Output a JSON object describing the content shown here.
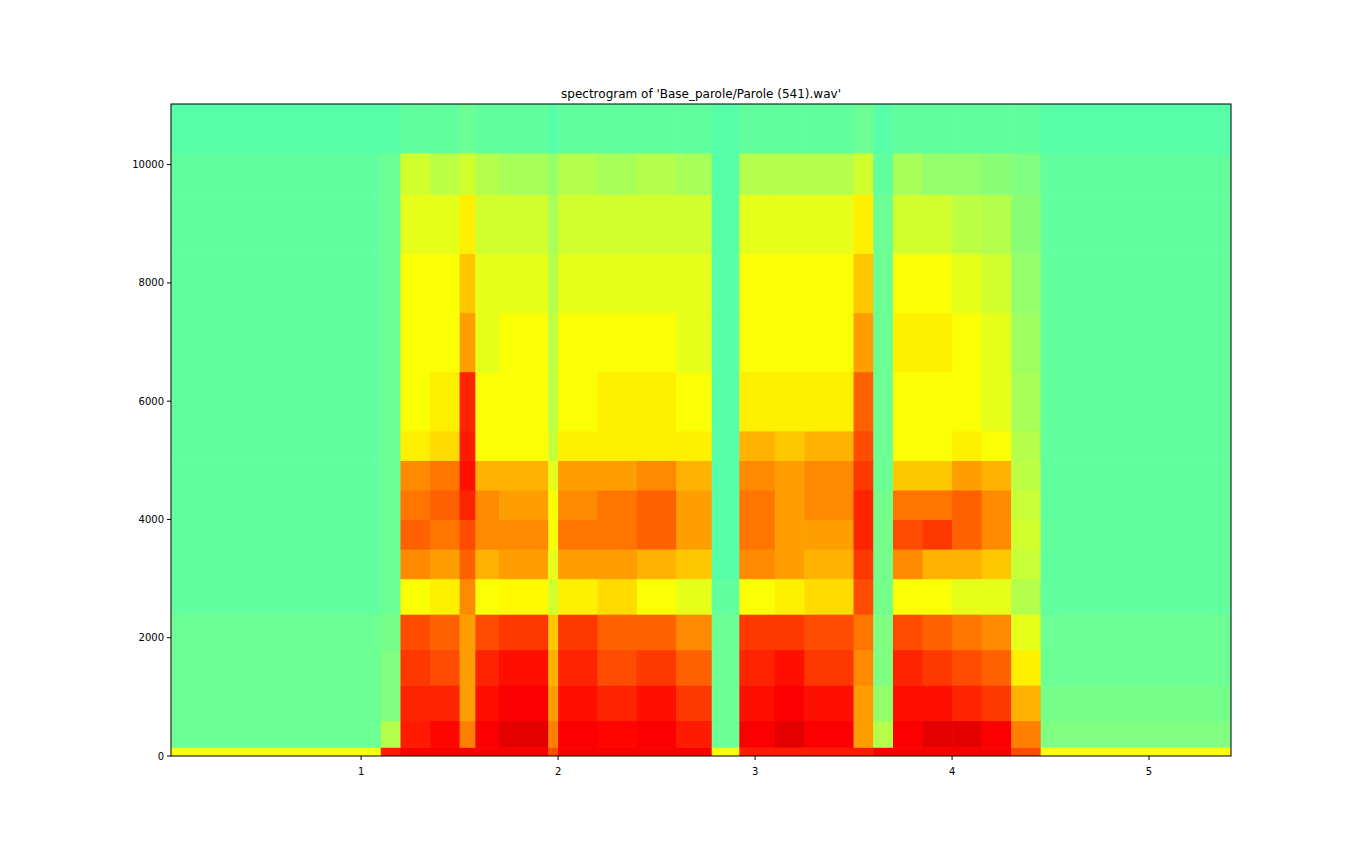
{
  "chart_data": {
    "type": "heatmap",
    "title": "spectrogram of 'Base_parole/Parole (541).wav'",
    "x": [
      0.035,
      1.1,
      1.2,
      1.35,
      1.5,
      1.58,
      1.7,
      1.95,
      2.0,
      2.2,
      2.4,
      2.6,
      2.78,
      2.92,
      3.1,
      3.25,
      3.5,
      3.6,
      3.7,
      3.85,
      4.0,
      4.15,
      4.3,
      4.45,
      5.416
    ],
    "y": [
      0,
      150,
      600,
      1200,
      1800,
      2400,
      3000,
      3500,
      4000,
      4500,
      5000,
      5500,
      6500,
      7500,
      8500,
      9500,
      10200,
      11025
    ],
    "cells": [
      [
        62,
        85,
        88,
        88,
        88,
        88,
        88,
        80,
        88,
        88,
        88,
        88,
        62,
        85,
        85,
        85,
        85,
        88,
        88,
        88,
        88,
        88,
        80,
        62
      ],
      [
        48,
        55,
        85,
        87,
        75,
        88,
        90,
        75,
        88,
        87,
        88,
        85,
        48,
        88,
        90,
        88,
        72,
        55,
        88,
        90,
        90,
        88,
        75,
        50
      ],
      [
        48,
        50,
        84,
        84,
        72,
        86,
        88,
        72,
        86,
        84,
        86,
        82,
        48,
        86,
        88,
        86,
        72,
        52,
        86,
        86,
        84,
        82,
        70,
        49
      ],
      [
        48,
        50,
        82,
        80,
        72,
        84,
        86,
        70,
        84,
        80,
        82,
        78,
        48,
        84,
        86,
        82,
        74,
        50,
        84,
        82,
        80,
        78,
        64,
        48
      ],
      [
        48,
        49,
        80,
        78,
        72,
        80,
        82,
        68,
        82,
        78,
        78,
        74,
        48,
        82,
        82,
        80,
        76,
        50,
        80,
        78,
        76,
        74,
        60,
        48
      ],
      [
        47,
        48,
        62,
        64,
        74,
        62,
        63,
        58,
        64,
        66,
        62,
        60,
        47,
        62,
        64,
        66,
        80,
        49,
        62,
        62,
        60,
        60,
        55,
        47
      ],
      [
        47,
        48,
        74,
        72,
        78,
        70,
        72,
        60,
        72,
        72,
        70,
        68,
        46,
        74,
        72,
        70,
        82,
        49,
        74,
        70,
        70,
        68,
        57,
        47
      ],
      [
        47,
        48,
        78,
        76,
        80,
        74,
        74,
        62,
        76,
        76,
        78,
        72,
        46,
        76,
        72,
        72,
        84,
        49,
        80,
        82,
        78,
        74,
        58,
        47
      ],
      [
        47,
        48,
        76,
        78,
        84,
        74,
        72,
        62,
        74,
        76,
        78,
        72,
        46,
        76,
        72,
        74,
        84,
        49,
        76,
        76,
        78,
        74,
        57,
        47
      ],
      [
        47,
        48,
        74,
        76,
        86,
        70,
        70,
        60,
        72,
        72,
        74,
        70,
        46,
        74,
        72,
        74,
        82,
        48,
        68,
        68,
        72,
        70,
        56,
        47
      ],
      [
        47,
        48,
        64,
        66,
        85,
        62,
        62,
        57,
        64,
        64,
        64,
        64,
        46,
        70,
        68,
        70,
        80,
        48,
        62,
        62,
        64,
        62,
        55,
        47
      ],
      [
        47,
        48,
        62,
        64,
        84,
        62,
        62,
        56,
        62,
        64,
        64,
        62,
        46,
        64,
        64,
        64,
        78,
        48,
        62,
        62,
        62,
        60,
        54,
        47
      ],
      [
        47,
        48,
        62,
        62,
        72,
        60,
        62,
        56,
        62,
        62,
        62,
        60,
        46,
        62,
        62,
        62,
        72,
        48,
        64,
        64,
        62,
        60,
        53,
        47
      ],
      [
        47,
        48,
        62,
        62,
        68,
        60,
        60,
        55,
        60,
        60,
        60,
        60,
        46,
        62,
        62,
        62,
        68,
        48,
        62,
        62,
        60,
        58,
        52,
        47
      ],
      [
        47,
        48,
        60,
        60,
        64,
        58,
        58,
        54,
        58,
        58,
        58,
        58,
        46,
        60,
        60,
        60,
        64,
        48,
        58,
        58,
        56,
        55,
        51,
        47
      ],
      [
        47,
        48,
        58,
        56,
        58,
        55,
        54,
        52,
        55,
        54,
        55,
        54,
        46,
        55,
        55,
        55,
        58,
        47,
        54,
        52,
        52,
        51,
        50,
        47
      ],
      [
        46,
        46,
        47,
        47,
        48,
        47,
        47,
        46,
        47,
        47,
        47,
        47,
        46,
        47,
        47,
        47,
        48,
        46,
        47,
        47,
        47,
        47,
        47,
        46
      ]
    ],
    "zlim": [
      0,
      100
    ],
    "xlim": [
      0.035,
      5.416
    ],
    "ylim": [
      0,
      11025
    ],
    "xticks": [
      1,
      2,
      3,
      4,
      5
    ],
    "yticks": [
      0,
      2000,
      4000,
      6000,
      8000,
      10000
    ]
  }
}
